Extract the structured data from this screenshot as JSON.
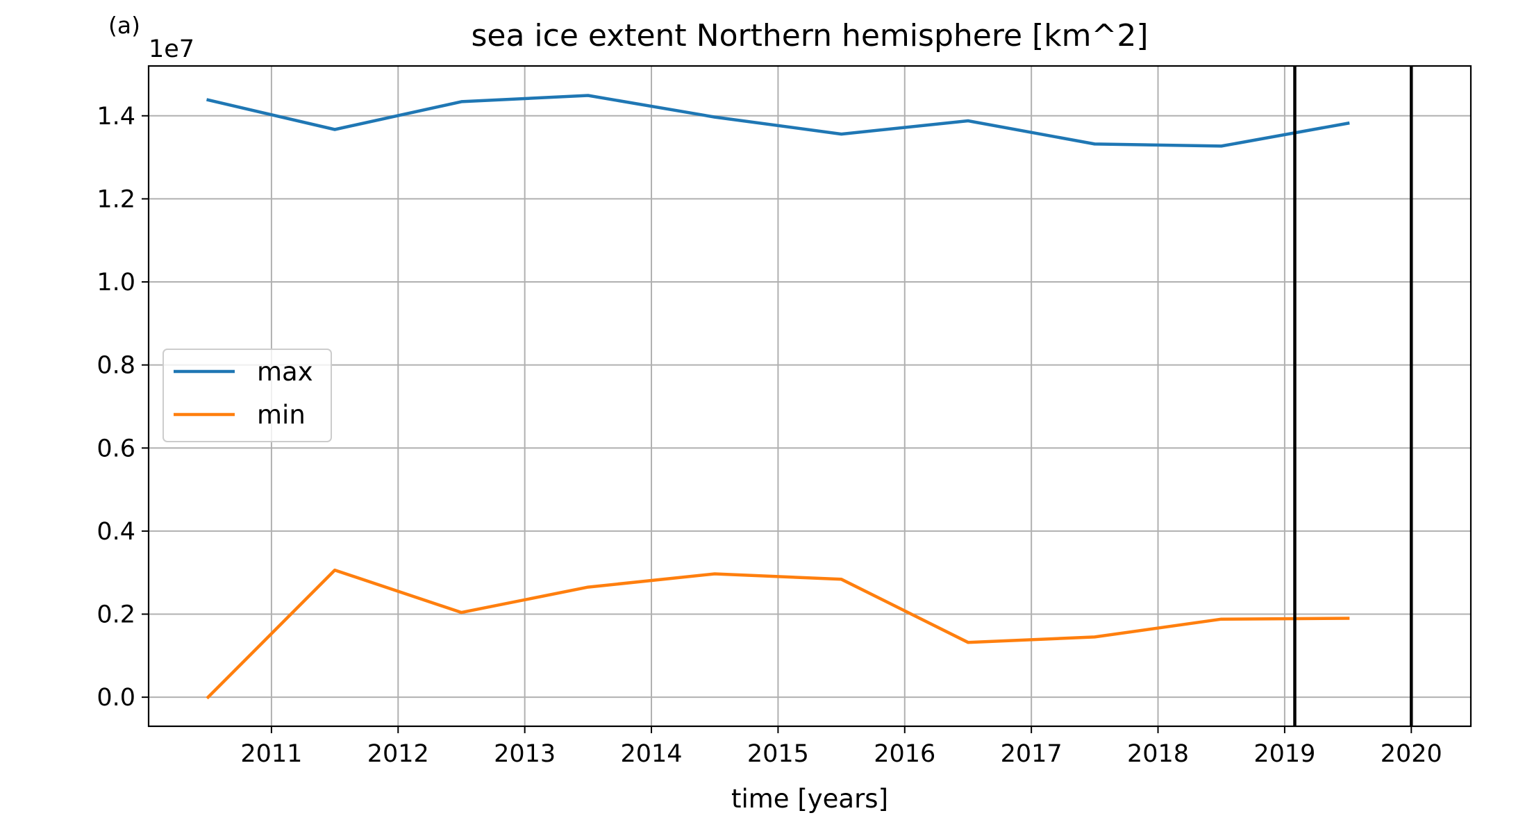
{
  "chart_data": {
    "type": "line",
    "panel_label": "(a)",
    "title": "sea ice extent Northern hemisphere [km^2]",
    "xlabel": "time [years]",
    "ylabel": "",
    "y_offset_label": "1e7",
    "xlim": [
      2010.03,
      2020.47
    ],
    "ylim": [
      -0.07,
      1.52
    ],
    "y_scale_factor": 10000000,
    "grid": true,
    "legend_placement": "center-left",
    "x_ticks": [
      2011,
      2012,
      2013,
      2014,
      2015,
      2016,
      2017,
      2018,
      2019,
      2020
    ],
    "x_tick_labels": [
      "2011",
      "2012",
      "2013",
      "2014",
      "2015",
      "2016",
      "2017",
      "2018",
      "2019",
      "2020"
    ],
    "y_ticks": [
      0.0,
      0.2,
      0.4,
      0.6,
      0.8,
      1.0,
      1.2,
      1.4
    ],
    "y_tick_labels": [
      "0.0",
      "0.2",
      "0.4",
      "0.6",
      "0.8",
      "1.0",
      "1.2",
      "1.4"
    ],
    "x": [
      2010.5,
      2011.5,
      2012.5,
      2013.5,
      2014.5,
      2015.5,
      2016.5,
      2017.5,
      2018.5,
      2019.5
    ],
    "series": [
      {
        "name": "max",
        "color": "#1f77b4",
        "values": [
          1.438,
          1.367,
          1.434,
          1.449,
          1.397,
          1.356,
          1.388,
          1.332,
          1.327,
          1.382
        ]
      },
      {
        "name": "min",
        "color": "#ff7f0e",
        "values": [
          0.0,
          0.306,
          0.204,
          0.265,
          0.297,
          0.284,
          0.132,
          0.145,
          0.188,
          0.19
        ]
      }
    ],
    "vertical_lines": [
      {
        "x": 2019.08,
        "color": "#000000"
      },
      {
        "x": 2020.0,
        "color": "#000000"
      }
    ]
  }
}
